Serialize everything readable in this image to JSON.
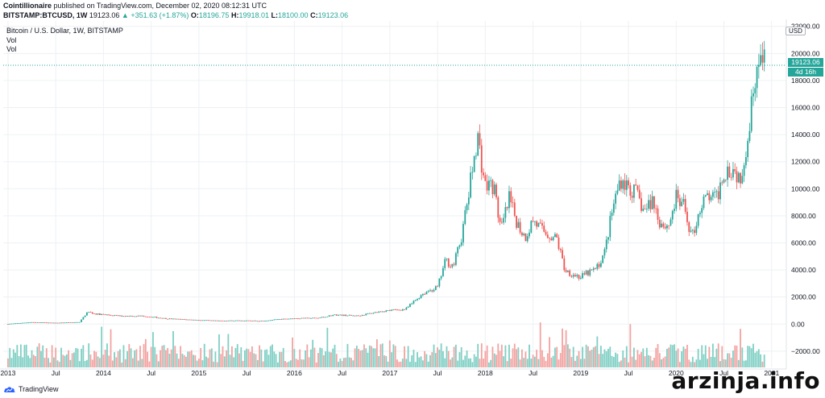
{
  "header": {
    "author": "Cointillionaire",
    "published": "published on TradingView.com, December 02, 2020 08:12:31 UTC",
    "symbol": "BITSTAMP:BTCUSD, 1W",
    "last": "19123.06",
    "change": "▲ +351.63 (+1.87%)",
    "open_label": "O:",
    "open": "18196.75",
    "high_label": "H:",
    "high": "19918.01",
    "low_label": "L:",
    "low": "18100.00",
    "close_label": "C:",
    "close": "19123.06"
  },
  "legend": {
    "title": "Bitcoin / U.S. Dollar, 1W, BITSTAMP",
    "vol1": "Vol",
    "vol2": "Vol"
  },
  "price_axis": {
    "currency": "USD",
    "last_price_tag": "19123.06",
    "countdown_tag": "4d 16h"
  },
  "footer": {
    "logo_text": "TradingView",
    "watermark": "arzinja.info"
  },
  "colors": {
    "up": "#26a69a",
    "down": "#ef5350",
    "up_vol": "#7fcfc4",
    "down_vol": "#f2a3a1",
    "grid": "#eef0f3",
    "last_price_line": "#26a69a"
  },
  "chart_data": {
    "type": "candlestick",
    "title": "Bitcoin / U.S. Dollar, 1W, BITSTAMP",
    "interval": "1W",
    "price_ticks": [
      -2000,
      0,
      2000,
      4000,
      6000,
      8000,
      10000,
      12000,
      14000,
      16000,
      18000,
      20000,
      22000
    ],
    "price_tick_labels": [
      "−2000.00",
      "0.00",
      "2000.00",
      "4000.00",
      "6000.00",
      "8000.00",
      "10000.00",
      "12000.00",
      "14000.00",
      "16000.00",
      "18000.00",
      "20000.00",
      "22000.00"
    ],
    "ylim": [
      -3200,
      22400
    ],
    "x_tick_labels": [
      "2013",
      "Jul",
      "2014",
      "Jul",
      "2015",
      "Jul",
      "2016",
      "Jul",
      "2017",
      "Jul",
      "2018",
      "Jul",
      "2019",
      "Jul",
      "2020",
      "Jul",
      "2021"
    ],
    "x_tick_years": [
      2013.0,
      2013.5,
      2014.0,
      2014.5,
      2015.0,
      2015.5,
      2016.0,
      2016.5,
      2017.0,
      2017.5,
      2018.0,
      2018.5,
      2019.0,
      2019.5,
      2020.0,
      2020.5,
      2021.0
    ],
    "xlim": [
      2012.95,
      2021.12
    ],
    "last_price": 19123.06,
    "close_series": [
      [
        "2013-01",
        13
      ],
      [
        "2013-04",
        140
      ],
      [
        "2013-07",
        90
      ],
      [
        "2013-10",
        150
      ],
      [
        "2013-11",
        900
      ],
      [
        "2013-12",
        750
      ],
      [
        "2014-03",
        600
      ],
      [
        "2014-06",
        600
      ],
      [
        "2014-09",
        400
      ],
      [
        "2014-12",
        320
      ],
      [
        "2015-03",
        250
      ],
      [
        "2015-06",
        260
      ],
      [
        "2015-09",
        235
      ],
      [
        "2015-11",
        350
      ],
      [
        "2016-01",
        420
      ],
      [
        "2016-04",
        450
      ],
      [
        "2016-06",
        680
      ],
      [
        "2016-09",
        610
      ],
      [
        "2016-12",
        960
      ],
      [
        "2017-03",
        1100
      ],
      [
        "2017-05",
        2200
      ],
      [
        "2017-06",
        2500
      ],
      [
        "2017-07",
        2700
      ],
      [
        "2017-08",
        4700
      ],
      [
        "2017-09",
        4300
      ],
      [
        "2017-10",
        6400
      ],
      [
        "2017-11",
        9900
      ],
      [
        "2017-12",
        14000
      ],
      [
        "2018-01",
        10200
      ],
      [
        "2018-02",
        10300
      ],
      [
        "2018-03",
        6900
      ],
      [
        "2018-04",
        9200
      ],
      [
        "2018-05",
        7500
      ],
      [
        "2018-06",
        6400
      ],
      [
        "2018-07",
        7700
      ],
      [
        "2018-08",
        7000
      ],
      [
        "2018-09",
        6600
      ],
      [
        "2018-10",
        6300
      ],
      [
        "2018-11",
        4000
      ],
      [
        "2018-12",
        3700
      ],
      [
        "2019-01",
        3450
      ],
      [
        "2019-02",
        3800
      ],
      [
        "2019-03",
        4100
      ],
      [
        "2019-04",
        5300
      ],
      [
        "2019-05",
        8500
      ],
      [
        "2019-06",
        10800
      ],
      [
        "2019-07",
        10100
      ],
      [
        "2019-08",
        9600
      ],
      [
        "2019-09",
        8300
      ],
      [
        "2019-10",
        9200
      ],
      [
        "2019-11",
        7500
      ],
      [
        "2019-12",
        7200
      ],
      [
        "2020-01",
        9300
      ],
      [
        "2020-02",
        8600
      ],
      [
        "2020-03",
        6400
      ],
      [
        "2020-04",
        8600
      ],
      [
        "2020-05",
        9450
      ],
      [
        "2020-06",
        9140
      ],
      [
        "2020-07",
        11300
      ],
      [
        "2020-08",
        11650
      ],
      [
        "2020-09",
        10800
      ],
      [
        "2020-10",
        13800
      ],
      [
        "2020-11",
        19100
      ],
      [
        "2020-12",
        19123.06
      ]
    ]
  }
}
